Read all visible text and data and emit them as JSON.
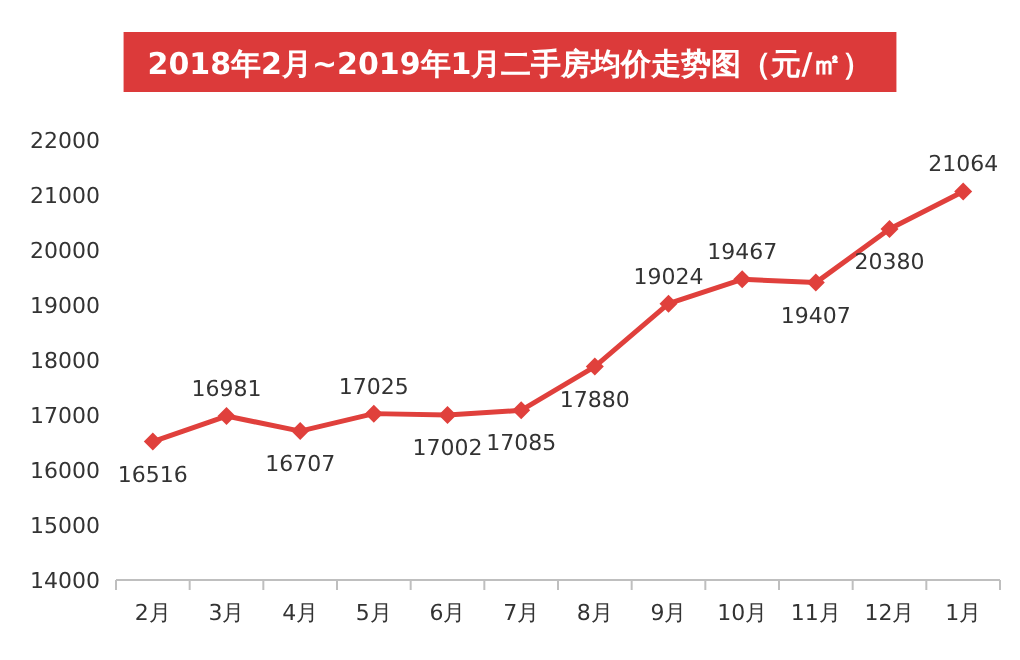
{
  "chart_data": {
    "type": "line",
    "title": "2018年2月~2019年1月二手房均价走势图（元/㎡）",
    "categories": [
      "2月",
      "3月",
      "4月",
      "5月",
      "6月",
      "7月",
      "8月",
      "9月",
      "10月",
      "11月",
      "12月",
      "1月"
    ],
    "series": [
      {
        "color": "#e0403c",
        "values": [
          16516,
          16981,
          16707,
          17025,
          17002,
          17085,
          17880,
          19024,
          19467,
          19407,
          20380,
          21064
        ]
      }
    ],
    "ylim": [
      14000,
      22000
    ],
    "yticks": [
      14000,
      15000,
      16000,
      17000,
      18000,
      19000,
      20000,
      21000,
      22000
    ],
    "marker": "diamond",
    "data_labels": true,
    "grid": false
  }
}
